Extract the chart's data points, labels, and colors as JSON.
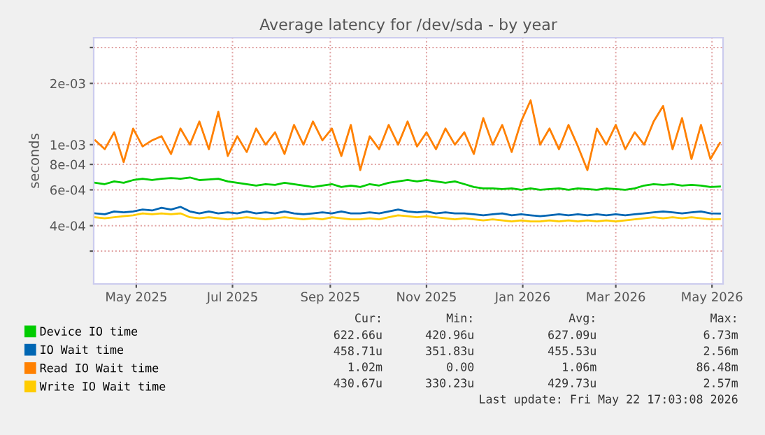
{
  "chart_data": {
    "type": "line",
    "title": "Average latency for /dev/sda - by year",
    "ylabel": "seconds",
    "x": [
      "2025-04-20",
      "2025-04-26",
      "2025-05-02",
      "2025-05-08",
      "2025-05-14",
      "2025-05-20",
      "2025-05-26",
      "2025-06-01",
      "2025-06-07",
      "2025-06-13",
      "2025-06-19",
      "2025-06-25",
      "2025-07-01",
      "2025-07-07",
      "2025-07-13",
      "2025-07-19",
      "2025-07-25",
      "2025-07-31",
      "2025-08-06",
      "2025-08-12",
      "2025-08-18",
      "2025-08-24",
      "2025-08-30",
      "2025-09-05",
      "2025-09-11",
      "2025-09-17",
      "2025-09-23",
      "2025-09-29",
      "2025-10-05",
      "2025-10-11",
      "2025-10-17",
      "2025-10-23",
      "2025-10-29",
      "2025-11-04",
      "2025-11-10",
      "2025-11-16",
      "2025-11-22",
      "2025-11-28",
      "2025-12-04",
      "2025-12-10",
      "2025-12-16",
      "2025-12-22",
      "2025-12-28",
      "2026-01-03",
      "2026-01-09",
      "2026-01-15",
      "2026-01-21",
      "2026-01-27",
      "2026-02-02",
      "2026-02-08",
      "2026-02-14",
      "2026-02-20",
      "2026-02-26",
      "2026-03-04",
      "2026-03-10",
      "2026-03-16",
      "2026-03-22",
      "2026-03-28",
      "2026-04-03",
      "2026-04-09",
      "2026-04-15",
      "2026-04-21",
      "2026-04-27",
      "2026-05-03",
      "2026-05-09",
      "2026-05-15",
      "2026-05-21"
    ],
    "series": [
      {
        "name": "Device IO time",
        "color": "#00cc00",
        "values": [
          0.00065,
          0.00064,
          0.00066,
          0.00065,
          0.00067,
          0.00068,
          0.00067,
          0.00068,
          0.000685,
          0.00068,
          0.00069,
          0.00067,
          0.000675,
          0.00068,
          0.00066,
          0.00065,
          0.00064,
          0.00063,
          0.00064,
          0.000635,
          0.00065,
          0.00064,
          0.00063,
          0.00062,
          0.00063,
          0.00064,
          0.00062,
          0.00063,
          0.00062,
          0.00064,
          0.00063,
          0.00065,
          0.00066,
          0.00067,
          0.00066,
          0.00067,
          0.00066,
          0.00065,
          0.00066,
          0.00064,
          0.00062,
          0.00061,
          0.00061,
          0.000605,
          0.00061,
          0.0006,
          0.00061,
          0.0006,
          0.000605,
          0.00061,
          0.0006,
          0.00061,
          0.000605,
          0.0006,
          0.00061,
          0.000605,
          0.0006,
          0.00061,
          0.00063,
          0.00064,
          0.000635,
          0.00064,
          0.00063,
          0.000635,
          0.00063,
          0.00062,
          0.00062266
        ]
      },
      {
        "name": "IO Wait time",
        "color": "#0066b3",
        "values": [
          0.00046,
          0.000455,
          0.00047,
          0.000465,
          0.00047,
          0.00048,
          0.000475,
          0.00049,
          0.00048,
          0.000495,
          0.00047,
          0.00046,
          0.00047,
          0.00046,
          0.000465,
          0.00046,
          0.00047,
          0.00046,
          0.000465,
          0.00046,
          0.00047,
          0.00046,
          0.000455,
          0.00046,
          0.000465,
          0.00046,
          0.00047,
          0.00046,
          0.00046,
          0.000465,
          0.00046,
          0.00047,
          0.00048,
          0.00047,
          0.000465,
          0.00047,
          0.00046,
          0.000465,
          0.00046,
          0.00046,
          0.000455,
          0.00045,
          0.000455,
          0.00046,
          0.00045,
          0.000455,
          0.00045,
          0.000445,
          0.00045,
          0.000455,
          0.00045,
          0.000455,
          0.00045,
          0.000455,
          0.00045,
          0.000455,
          0.00045,
          0.000455,
          0.00046,
          0.000465,
          0.00047,
          0.000465,
          0.00046,
          0.000465,
          0.00047,
          0.00046,
          0.00045871
        ]
      },
      {
        "name": "Read IO Wait time",
        "color": "#ff8000",
        "values": [
          0.00105,
          0.00095,
          0.00115,
          0.00082,
          0.0012,
          0.00098,
          0.00105,
          0.0011,
          0.0009,
          0.0012,
          0.001,
          0.0013,
          0.00095,
          0.00145,
          0.00088,
          0.0011,
          0.00092,
          0.0012,
          0.001,
          0.00115,
          0.0009,
          0.00125,
          0.001,
          0.0013,
          0.00105,
          0.0012,
          0.00088,
          0.00125,
          0.00075,
          0.0011,
          0.00095,
          0.00125,
          0.001,
          0.0013,
          0.00098,
          0.00115,
          0.00095,
          0.0012,
          0.001,
          0.00115,
          0.0009,
          0.00135,
          0.001,
          0.00125,
          0.00092,
          0.0013,
          0.00165,
          0.001,
          0.0012,
          0.00095,
          0.00125,
          0.00098,
          0.00075,
          0.0012,
          0.001,
          0.00125,
          0.00095,
          0.00115,
          0.001,
          0.0013,
          0.00155,
          0.00095,
          0.00135,
          0.00085,
          0.00125,
          0.00085,
          0.00102
        ]
      },
      {
        "name": "Write IO Wait time",
        "color": "#ffcc00",
        "values": [
          0.00044,
          0.000435,
          0.00044,
          0.000445,
          0.00045,
          0.00046,
          0.000455,
          0.00046,
          0.000455,
          0.00046,
          0.00044,
          0.000435,
          0.00044,
          0.000435,
          0.00043,
          0.000435,
          0.00044,
          0.000435,
          0.00043,
          0.000435,
          0.00044,
          0.000435,
          0.00043,
          0.000435,
          0.00043,
          0.00044,
          0.000435,
          0.00043,
          0.00043,
          0.000435,
          0.00043,
          0.00044,
          0.00045,
          0.000445,
          0.00044,
          0.000445,
          0.00044,
          0.000435,
          0.00043,
          0.000435,
          0.00043,
          0.000425,
          0.00043,
          0.000425,
          0.00042,
          0.000425,
          0.00042,
          0.00042,
          0.000425,
          0.00042,
          0.000425,
          0.00042,
          0.000425,
          0.00042,
          0.000425,
          0.00042,
          0.000425,
          0.00043,
          0.000435,
          0.00044,
          0.000435,
          0.00044,
          0.000435,
          0.00044,
          0.000435,
          0.00043,
          0.00043067
        ]
      }
    ],
    "log": "y",
    "ylim": [
      0.000207,
      0.00335
    ],
    "yticks": [
      {
        "value": 0.0003,
        "label": null
      },
      {
        "value": 0.0004,
        "label": "4e-04"
      },
      {
        "value": 0.0006,
        "label": "6e-04"
      },
      {
        "value": 0.0008,
        "label": "8e-04"
      },
      {
        "value": 0.001,
        "label": "1e-03"
      },
      {
        "value": 0.002,
        "label": "2e-03"
      },
      {
        "value": 0.003,
        "label": null
      }
    ],
    "xlim": [
      "2025-04-19",
      "2026-05-23"
    ],
    "xticks": [
      {
        "value": "2025-05-16",
        "label": "May 2025"
      },
      {
        "value": "2025-07-16",
        "label": "Jul 2025"
      },
      {
        "value": "2025-09-16",
        "label": "Sep 2025"
      },
      {
        "value": "2025-11-16",
        "label": "Nov 2025"
      },
      {
        "value": "2026-01-16",
        "label": "Jan 2026"
      },
      {
        "value": "2026-03-16",
        "label": "Mar 2026"
      },
      {
        "value": "2026-05-16",
        "label": "May 2026"
      }
    ],
    "grid": true,
    "legend": "bottom left",
    "marker": "none",
    "line_style": "solid",
    "annotations": [
      "Cur:",
      "Min:",
      "Avg:",
      "Max:",
      "622.66u",
      "420.96u",
      "627.09u",
      "6.73m",
      "458.71u",
      "351.83u",
      "455.53u",
      "2.56m",
      "1.02m",
      "0.00",
      "1.06m",
      "86.48m",
      "430.67u",
      "330.23u",
      "429.73u",
      "2.57m",
      "Last update: Fri May 22 17:03:08 2026"
    ]
  }
}
